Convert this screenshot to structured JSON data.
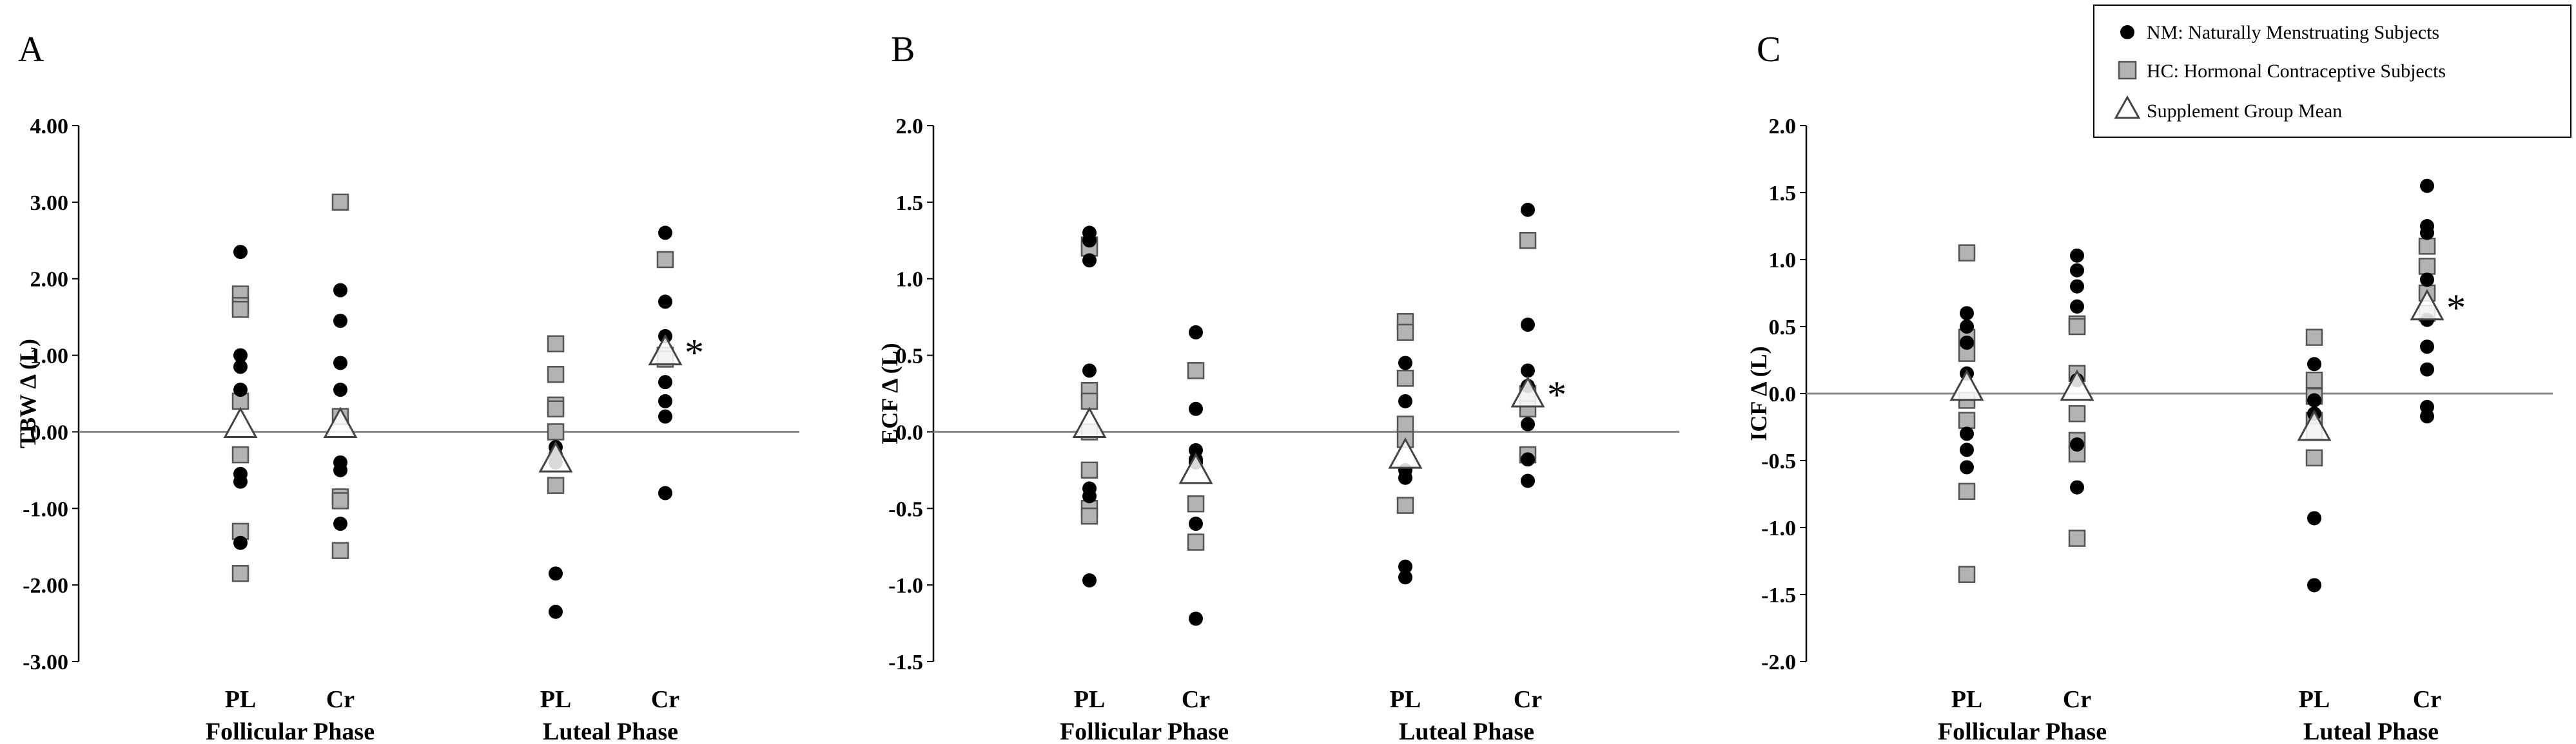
{
  "legend": {
    "position": "top-right",
    "entries": [
      {
        "marker": "black-circle",
        "label": "NM: Naturally Menstruating Subjects"
      },
      {
        "marker": "grey-square",
        "label": "HC: Hormonal Contraceptive Subjects"
      },
      {
        "marker": "triangle",
        "label": "Supplement Group Mean"
      }
    ]
  },
  "colors": {
    "nm": "#000000",
    "hc_fill": "#b3b3b3",
    "hc_stroke": "#555555",
    "mean_stroke": "#444444",
    "zero_line": "#888888"
  },
  "chart_data": [
    {
      "type": "scatter",
      "panel": "A",
      "ylabel": "TBW Δ (L)",
      "ylim": [
        -3,
        4
      ],
      "yticks": [
        4,
        3,
        2,
        1,
        0,
        -1,
        -2,
        -3
      ],
      "tick_decimals": 2,
      "categories": [
        "PL",
        "Cr",
        "PL",
        "Cr"
      ],
      "phases": [
        "Follicular Phase",
        "Luteal Phase"
      ],
      "groups": [
        {
          "nm": [
            2.35,
            1.0,
            0.85,
            0.55,
            -0.55,
            -0.65,
            -1.45
          ],
          "hc": [
            1.8,
            1.65,
            1.6,
            0.4,
            -0.3,
            -1.3,
            -1.85
          ],
          "mean": 0.1,
          "sig": false
        },
        {
          "nm": [
            1.85,
            1.45,
            0.9,
            0.55,
            -0.4,
            -0.5,
            -1.2
          ],
          "hc": [
            3.0,
            0.2,
            -0.85,
            -0.9,
            -1.55
          ],
          "mean": 0.1,
          "sig": false
        },
        {
          "nm": [
            -0.2,
            -0.3,
            -0.4,
            -1.85,
            -2.35
          ],
          "hc": [
            1.15,
            0.75,
            0.35,
            0.3,
            0.0,
            -0.7
          ],
          "mean": -0.35,
          "sig": false
        },
        {
          "nm": [
            2.6,
            1.7,
            1.25,
            0.65,
            0.4,
            0.2,
            -0.8
          ],
          "hc": [
            2.25,
            1.0,
            0.95
          ],
          "mean": 1.05,
          "sig": true
        }
      ]
    },
    {
      "type": "scatter",
      "panel": "B",
      "ylabel": "ECF Δ (L)",
      "ylim": [
        -1.5,
        2
      ],
      "yticks": [
        2.0,
        1.5,
        1.0,
        0.5,
        0.0,
        -0.5,
        -1.0,
        -1.5
      ],
      "tick_decimals": 1,
      "categories": [
        "PL",
        "Cr",
        "PL",
        "Cr"
      ],
      "phases": [
        "Follicular Phase",
        "Luteal Phase"
      ],
      "groups": [
        {
          "nm": [
            1.3,
            1.25,
            1.12,
            0.4,
            -0.37,
            -0.42,
            -0.97
          ],
          "hc": [
            1.22,
            1.2,
            0.27,
            0.2,
            0.0,
            -0.25,
            -0.5,
            -0.55
          ],
          "mean": 0.05,
          "sig": false
        },
        {
          "nm": [
            0.65,
            0.15,
            -0.12,
            -0.18,
            -0.2,
            -0.6,
            -1.22
          ],
          "hc": [
            0.4,
            -0.47,
            -0.72
          ],
          "mean": -0.25,
          "sig": false
        },
        {
          "nm": [
            0.45,
            0.2,
            -0.25,
            -0.3,
            -0.88,
            -0.95
          ],
          "hc": [
            0.72,
            0.65,
            0.35,
            0.05,
            -0.05,
            -0.48
          ],
          "mean": -0.15,
          "sig": false
        },
        {
          "nm": [
            1.45,
            0.7,
            0.4,
            0.3,
            0.05,
            -0.18,
            -0.32
          ],
          "hc": [
            1.25,
            0.25,
            0.15,
            -0.15
          ],
          "mean": 0.25,
          "sig": true
        }
      ]
    },
    {
      "type": "scatter",
      "panel": "C",
      "ylabel": "ICF Δ (L)",
      "ylim": [
        -2,
        2
      ],
      "yticks": [
        2.0,
        1.5,
        1.0,
        0.5,
        0.0,
        -0.5,
        -1.0,
        -1.5,
        -2.0
      ],
      "tick_decimals": 1,
      "categories": [
        "PL",
        "Cr",
        "PL",
        "Cr"
      ],
      "phases": [
        "Follicular Phase",
        "Luteal Phase"
      ],
      "groups": [
        {
          "nm": [
            0.6,
            0.5,
            0.38,
            0.15,
            -0.3,
            -0.42,
            -0.55
          ],
          "hc": [
            1.05,
            0.42,
            0.3,
            -0.05,
            -0.2,
            -0.73,
            -1.35
          ],
          "mean": 0.05,
          "sig": false
        },
        {
          "nm": [
            1.03,
            0.92,
            0.8,
            0.65,
            0.1,
            -0.38,
            -0.7
          ],
          "hc": [
            0.52,
            0.5,
            0.15,
            -0.15,
            -0.35,
            -0.45,
            -1.08
          ],
          "mean": 0.05,
          "sig": false
        },
        {
          "nm": [
            0.22,
            -0.05,
            -0.15,
            -0.93,
            -1.43
          ],
          "hc": [
            0.42,
            0.1,
            -0.02,
            -0.2,
            -0.28,
            -0.48
          ],
          "mean": -0.25,
          "sig": false
        },
        {
          "nm": [
            1.55,
            1.25,
            1.2,
            0.85,
            0.55,
            0.35,
            0.18,
            -0.1,
            -0.17
          ],
          "hc": [
            1.1,
            0.95,
            0.75,
            0.6
          ],
          "mean": 0.65,
          "sig": true
        }
      ]
    }
  ]
}
